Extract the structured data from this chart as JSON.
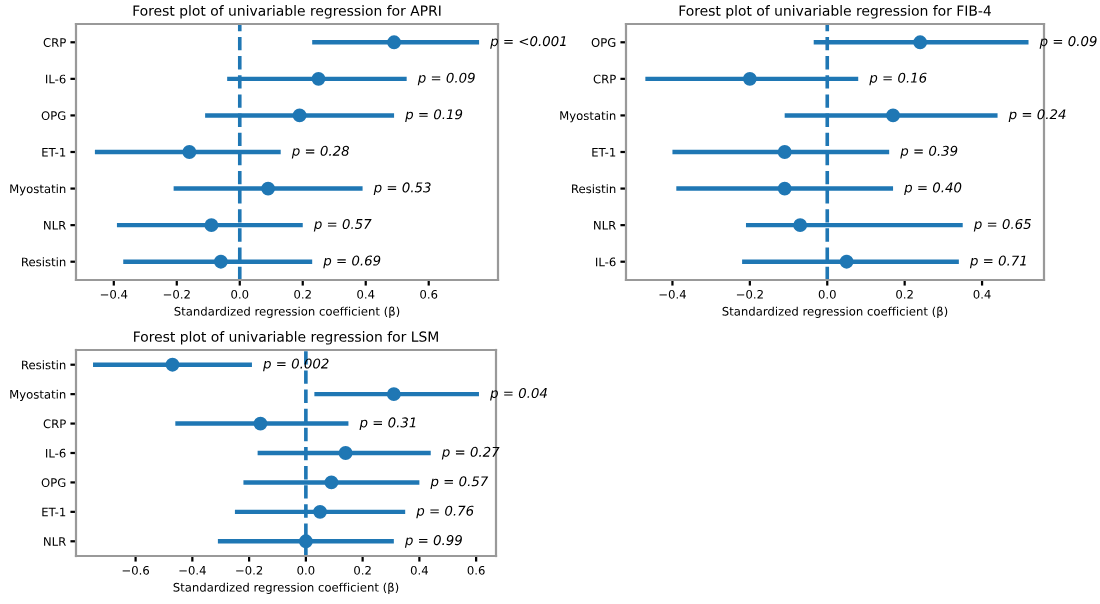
{
  "chart_data": [
    {
      "type": "scatter",
      "orientation": "horizontal",
      "title": "Forest plot of univariable regression for APRI",
      "xlabel": "Standardized regression coefficient (β)",
      "categories": [
        "CRP",
        "IL-6",
        "OPG",
        "ET-1",
        "Myostatin",
        "NLR",
        "Resistin"
      ],
      "series": [
        {
          "color": "#1f77b4",
          "values": [
            0.49,
            0.25,
            0.19,
            -0.16,
            0.09,
            -0.09,
            -0.06
          ],
          "errors": [
            [
              0.23,
              0.76
            ],
            [
              -0.04,
              0.53
            ],
            [
              -0.11,
              0.49
            ],
            [
              -0.46,
              0.13
            ],
            [
              -0.21,
              0.39
            ],
            [
              -0.39,
              0.2
            ],
            [
              -0.37,
              0.23
            ]
          ]
        }
      ],
      "xlim": [
        -0.52,
        0.82
      ],
      "xticks": [
        {
          "value": -0.4,
          "label": "−0.4"
        },
        {
          "value": -0.2,
          "label": "−0.2"
        },
        {
          "value": 0,
          "label": "0.0"
        },
        0.2,
        0.4,
        0.6
      ],
      "marker": "circle",
      "grid": false,
      "legend": false,
      "ref_lines": [
        {
          "axis": "x",
          "value": 0,
          "line_style": "dashed",
          "color": "#1f77b4"
        }
      ],
      "annotations": [
        "p = <0.001",
        "p = 0.09",
        "p = 0.19",
        "p = 0.28",
        "p = 0.53",
        "p = 0.57",
        "p = 0.69"
      ]
    },
    {
      "type": "scatter",
      "orientation": "horizontal",
      "title": "Forest plot of univariable regression for FIB-4",
      "xlabel": "Standardized regression coefficient (β)",
      "categories": [
        "OPG",
        "CRP",
        "Myostatin",
        "ET-1",
        "Resistin",
        "NLR",
        "IL-6"
      ],
      "series": [
        {
          "color": "#1f77b4",
          "values": [
            0.24,
            -0.2,
            0.17,
            -0.11,
            -0.11,
            -0.07,
            0.05
          ],
          "errors": [
            [
              -0.035,
              0.52
            ],
            [
              -0.47,
              0.08
            ],
            [
              -0.11,
              0.44
            ],
            [
              -0.4,
              0.16
            ],
            [
              -0.39,
              0.17
            ],
            [
              -0.21,
              0.35
            ],
            [
              -0.22,
              0.34
            ]
          ]
        }
      ],
      "xlim": [
        -0.52,
        0.56
      ],
      "xticks": [
        {
          "value": -0.4,
          "label": "−0.4"
        },
        {
          "value": -0.2,
          "label": "−0.2"
        },
        {
          "value": 0,
          "label": "0.0"
        },
        0.2,
        0.4
      ],
      "marker": "circle",
      "grid": false,
      "legend": false,
      "ref_lines": [
        {
          "axis": "x",
          "value": 0,
          "line_style": "dashed",
          "color": "#1f77b4"
        }
      ],
      "annotations": [
        "p = 0.09",
        "p = 0.16",
        "p = 0.24",
        "p = 0.39",
        "p = 0.40",
        "p = 0.65",
        "p = 0.71"
      ]
    },
    {
      "type": "scatter",
      "orientation": "horizontal",
      "title": "Forest plot of univariable regression for LSM",
      "xlabel": "Standardized regression coefficient (β)",
      "categories": [
        "Resistin",
        "Myostatin",
        "CRP",
        "IL-6",
        "OPG",
        "ET-1",
        "NLR"
      ],
      "series": [
        {
          "color": "#1f77b4",
          "values": [
            -0.47,
            0.31,
            -0.16,
            0.14,
            0.09,
            0.05,
            0.0
          ],
          "errors": [
            [
              -0.75,
              -0.19
            ],
            [
              0.03,
              0.61
            ],
            [
              -0.46,
              0.15
            ],
            [
              -0.17,
              0.44
            ],
            [
              -0.22,
              0.4
            ],
            [
              -0.25,
              0.35
            ],
            [
              -0.31,
              0.31
            ]
          ]
        }
      ],
      "xlim": [
        -0.81,
        0.67
      ],
      "xticks": [
        {
          "value": -0.6,
          "label": "−0.6"
        },
        {
          "value": -0.4,
          "label": "−0.4"
        },
        {
          "value": -0.2,
          "label": "−0.2"
        },
        {
          "value": 0,
          "label": "0.0"
        },
        0.2,
        0.4,
        0.6
      ],
      "marker": "circle",
      "grid": false,
      "legend": false,
      "ref_lines": [
        {
          "axis": "x",
          "value": 0,
          "line_style": "dashed",
          "color": "#1f77b4"
        }
      ],
      "annotations": [
        "p = 0.002",
        "p = 0.04",
        "p = 0.31",
        "p = 0.27",
        "p = 0.57",
        "p = 0.76",
        "p = 0.99"
      ]
    }
  ]
}
